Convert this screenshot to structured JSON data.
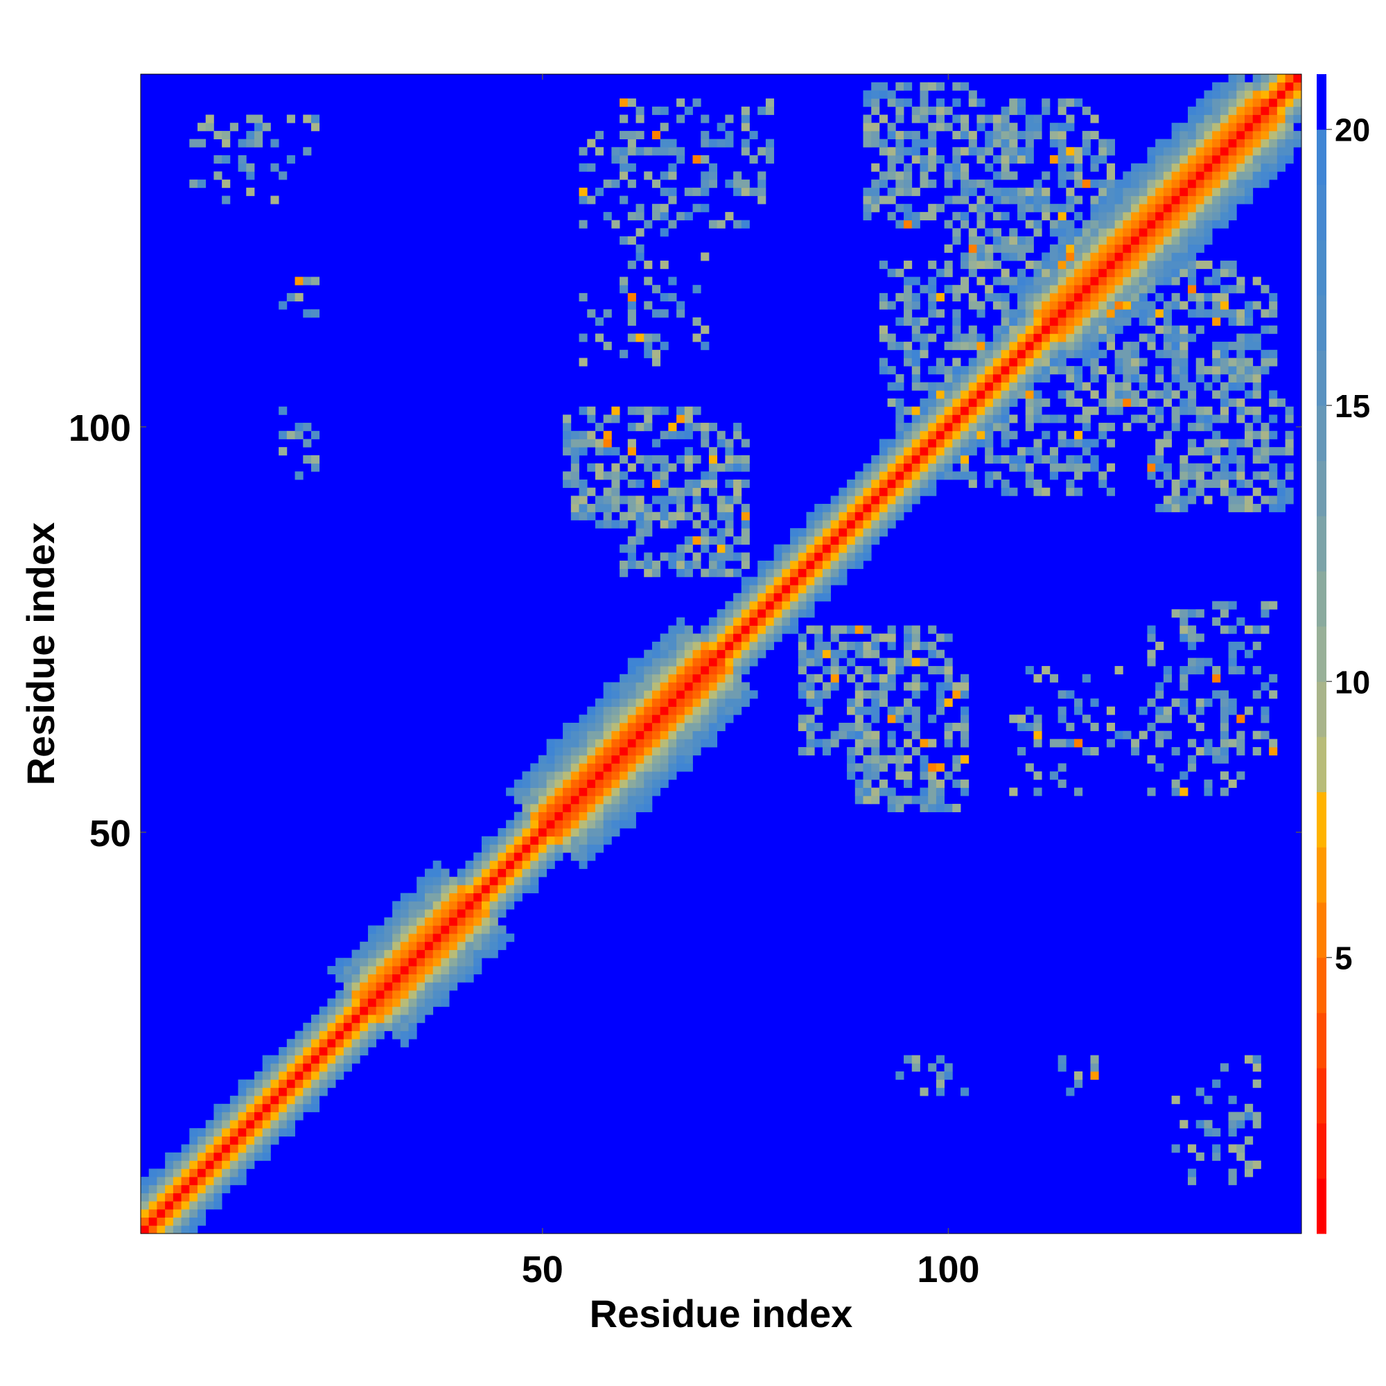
{
  "chart_data": {
    "type": "heatmap",
    "title": "",
    "xlabel": "Residue index",
    "ylabel": "Residue index",
    "n_residues": 143,
    "xlim": [
      1,
      143
    ],
    "ylim": [
      1,
      143
    ],
    "x_ticks": [
      50,
      100
    ],
    "y_ticks": [
      50,
      100
    ],
    "colorbar": {
      "range": [
        0,
        21
      ],
      "ticks": [
        5,
        10,
        15,
        20
      ],
      "levels": [
        {
          "max": 1,
          "color": "#ff0000"
        },
        {
          "max": 2,
          "color": "#ff1a00"
        },
        {
          "max": 3,
          "color": "#ff3300"
        },
        {
          "max": 4,
          "color": "#ff4d00"
        },
        {
          "max": 5,
          "color": "#ff6600"
        },
        {
          "max": 6,
          "color": "#ff7f00"
        },
        {
          "max": 7,
          "color": "#ff9900"
        },
        {
          "max": 8,
          "color": "#ffb300"
        },
        {
          "max": 9,
          "color": "#b8bc78"
        },
        {
          "max": 10,
          "color": "#a8b48a"
        },
        {
          "max": 11,
          "color": "#98b098"
        },
        {
          "max": 12,
          "color": "#8aaa9e"
        },
        {
          "max": 13,
          "color": "#7ca3a8"
        },
        {
          "max": 14,
          "color": "#709cb0"
        },
        {
          "max": 15,
          "color": "#6597b8"
        },
        {
          "max": 16,
          "color": "#5a92c0"
        },
        {
          "max": 17,
          "color": "#508ec6"
        },
        {
          "max": 18,
          "color": "#4a8cca"
        },
        {
          "max": 19,
          "color": "#4588d0"
        },
        {
          "max": 20,
          "color": "#3f85d4"
        },
        {
          "max": 21,
          "color": "#0000ff"
        }
      ]
    },
    "cutoff": 20,
    "description": "Symmetric residue-residue distance map; values are distances (Å). Strong diagonal band, off-diagonal contact clusters.",
    "clusters": [
      {
        "x": [
          90,
          102
        ],
        "y": [
          125,
          142
        ],
        "density": 0.55
      },
      {
        "x": [
          103,
          118
        ],
        "y": [
          118,
          140
        ],
        "density": 0.5
      },
      {
        "x": [
          119,
          135
        ],
        "y": [
          100,
          120
        ],
        "density": 0.45
      },
      {
        "x": [
          125,
          142
        ],
        "y": [
          90,
          103
        ],
        "density": 0.55
      },
      {
        "x": [
          53,
          72
        ],
        "y": [
          88,
          102
        ],
        "density": 0.55
      },
      {
        "x": [
          88,
          102
        ],
        "y": [
          53,
          72
        ],
        "density": 0.55
      },
      {
        "x": [
          82,
          100
        ],
        "y": [
          60,
          75
        ],
        "density": 0.5
      },
      {
        "x": [
          60,
          75
        ],
        "y": [
          82,
          100
        ],
        "density": 0.5
      },
      {
        "x": [
          92,
          110
        ],
        "y": [
          100,
          120
        ],
        "density": 0.45
      },
      {
        "x": [
          100,
          120
        ],
        "y": [
          92,
          110
        ],
        "density": 0.45
      },
      {
        "x": [
          55,
          75
        ],
        "y": [
          125,
          138
        ],
        "density": 0.35
      },
      {
        "x": [
          125,
          138
        ],
        "y": [
          55,
          75
        ],
        "density": 0.35
      },
      {
        "x": [
          55,
          68
        ],
        "y": [
          108,
          116
        ],
        "density": 0.2
      },
      {
        "x": [
          108,
          116
        ],
        "y": [
          55,
          68
        ],
        "density": 0.2
      },
      {
        "x": [
          7,
          22
        ],
        "y": [
          130,
          138
        ],
        "density": 0.25
      },
      {
        "x": [
          130,
          138
        ],
        "y": [
          7,
          22
        ],
        "density": 0.25
      },
      {
        "x": [
          128,
          140
        ],
        "y": [
          60,
          78
        ],
        "density": 0.3
      },
      {
        "x": [
          60,
          78
        ],
        "y": [
          128,
          140
        ],
        "density": 0.2
      },
      {
        "x": [
          128,
          138
        ],
        "y": [
          8,
          20
        ],
        "density": 0.2
      },
      {
        "x": [
          94,
          102
        ],
        "y": [
          18,
          22
        ],
        "density": 0.25
      },
      {
        "x": [
          114,
          118
        ],
        "y": [
          18,
          22
        ],
        "density": 0.15
      },
      {
        "x": [
          110,
          125
        ],
        "y": [
          60,
          70
        ],
        "density": 0.2
      }
    ]
  }
}
